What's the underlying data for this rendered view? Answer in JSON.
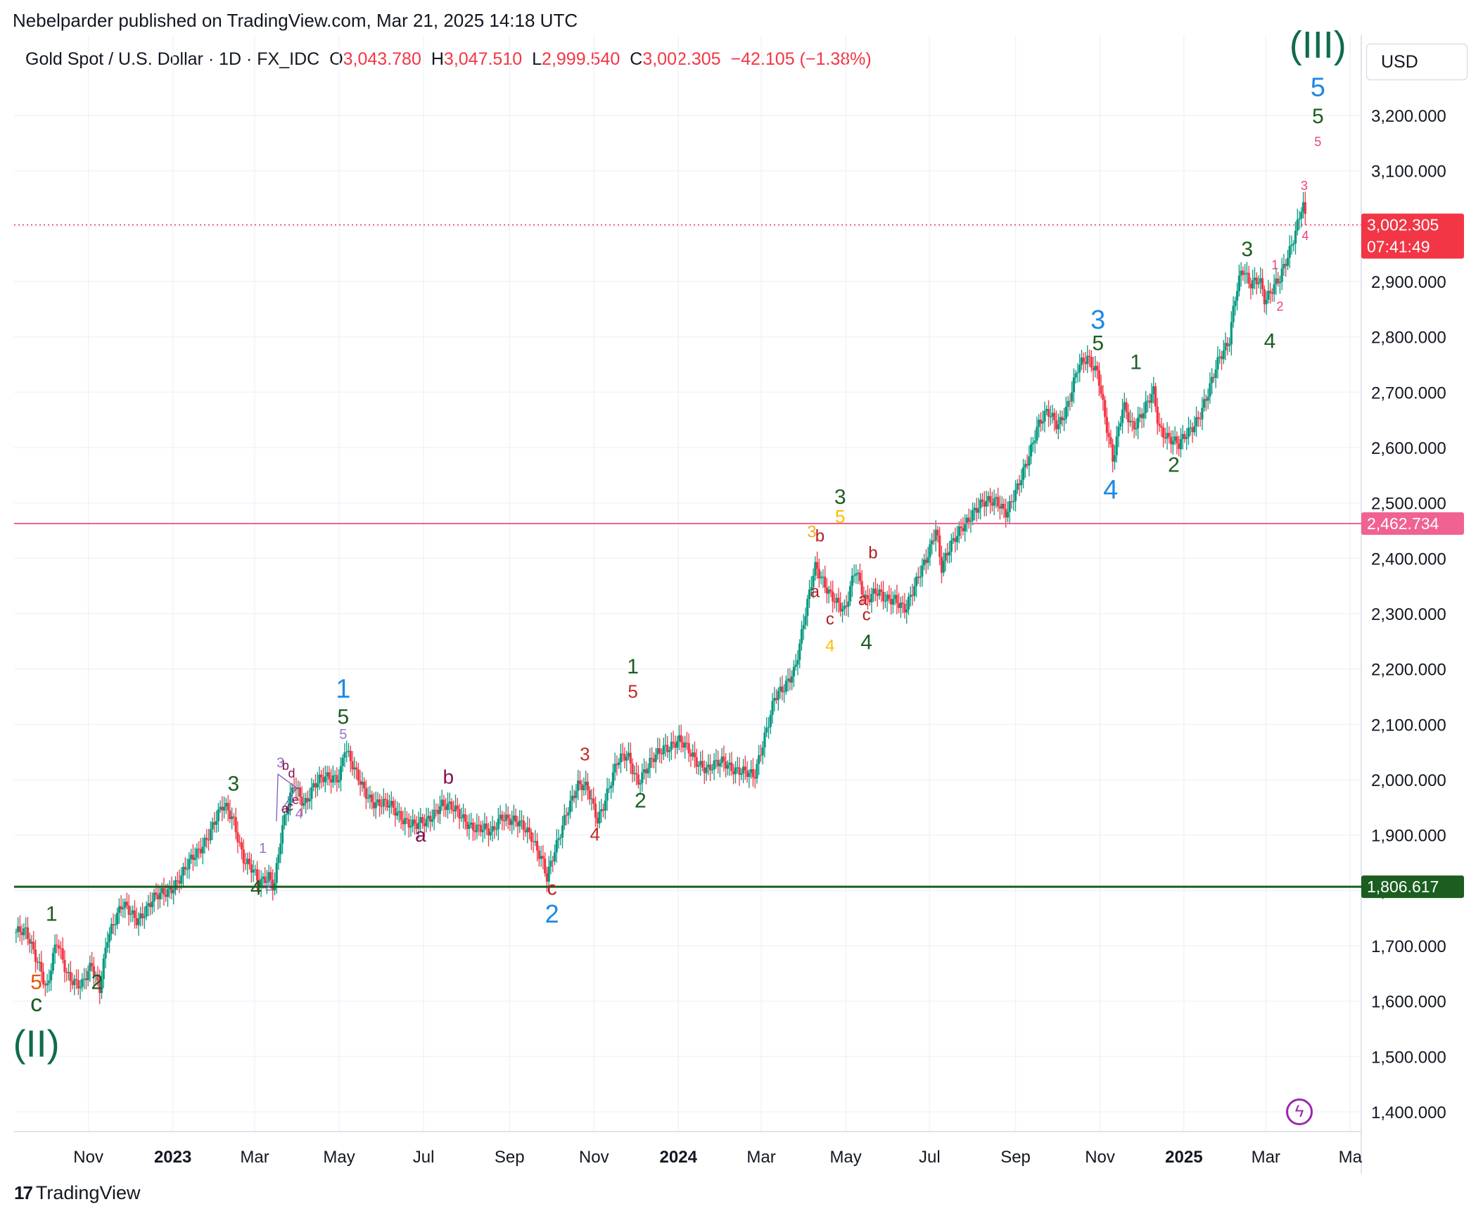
{
  "publisher_line": "Nebelparder published on TradingView.com, Mar 21, 2025 14:18 UTC",
  "legend": {
    "symbol": "Gold Spot / U.S. Dollar · 1D · FX_IDC",
    "o_label": "O",
    "o_value": "3,043.780",
    "h_label": "H",
    "h_value": "3,047.510",
    "l_label": "L",
    "l_value": "2,999.540",
    "c_label": "C",
    "c_value": "3,002.305",
    "change": "−42.105 (−1.38%)"
  },
  "currency": "USD",
  "footer_brand": "TradingView",
  "colors": {
    "up": "#089981",
    "down": "#f23645",
    "green_line": "#1b5e20",
    "pink_line": "#f06292",
    "price_badge": "#f23645",
    "pink_badge": "#ec407a",
    "green_badge": "#1b5e20"
  },
  "chart_data": {
    "type": "candlestick",
    "title": "Gold Spot / U.S. Dollar · 1D · FX_IDC",
    "ylim": [
      1360,
      3380
    ],
    "y_ticks": [
      "3,200.000",
      "3,100.000",
      "3,000.000",
      "2,900.000",
      "2,800.000",
      "2,700.000",
      "2,600.000",
      "2,500.000",
      "2,400.000",
      "2,300.000",
      "2,200.000",
      "2,100.000",
      "2,000.000",
      "1,900.000",
      "1,800.000",
      "1,700.000",
      "1,600.000",
      "1,500.000",
      "1,400.000"
    ],
    "y_tick_values": [
      3200,
      3100,
      3000,
      2900,
      2800,
      2700,
      2600,
      2500,
      2400,
      2300,
      2200,
      2100,
      2000,
      1900,
      1800,
      1700,
      1600,
      1500,
      1400
    ],
    "x_ticks": [
      {
        "label": "Nov",
        "t": 2022.833,
        "bold": false
      },
      {
        "label": "2023",
        "t": 2023.0,
        "bold": true
      },
      {
        "label": "Mar",
        "t": 2023.162,
        "bold": false
      },
      {
        "label": "May",
        "t": 2023.329,
        "bold": false
      },
      {
        "label": "Jul",
        "t": 2023.496,
        "bold": false
      },
      {
        "label": "Sep",
        "t": 2023.666,
        "bold": false
      },
      {
        "label": "Nov",
        "t": 2023.833,
        "bold": false
      },
      {
        "label": "2024",
        "t": 2024.0,
        "bold": true
      },
      {
        "label": "Mar",
        "t": 2024.164,
        "bold": false
      },
      {
        "label": "May",
        "t": 2024.331,
        "bold": false
      },
      {
        "label": "Jul",
        "t": 2024.497,
        "bold": false
      },
      {
        "label": "Sep",
        "t": 2024.667,
        "bold": false
      },
      {
        "label": "Nov",
        "t": 2024.834,
        "bold": false
      },
      {
        "label": "2025",
        "t": 2025.0,
        "bold": true
      },
      {
        "label": "Mar",
        "t": 2025.162,
        "bold": false
      },
      {
        "label": "Ma",
        "t": 2025.329,
        "bold": false
      }
    ],
    "price_path": [
      [
        2022.69,
        1725
      ],
      [
        2022.71,
        1720
      ],
      [
        2022.74,
        1660
      ],
      [
        2022.75,
        1620
      ],
      [
        2022.77,
        1705
      ],
      [
        2022.79,
        1650
      ],
      [
        2022.82,
        1630
      ],
      [
        2022.84,
        1660
      ],
      [
        2022.855,
        1620
      ],
      [
        2022.87,
        1720
      ],
      [
        2022.9,
        1770
      ],
      [
        2022.93,
        1750
      ],
      [
        2022.96,
        1780
      ],
      [
        2022.99,
        1800
      ],
      [
        2023.02,
        1830
      ],
      [
        2023.05,
        1870
      ],
      [
        2023.08,
        1920
      ],
      [
        2023.1,
        1950
      ],
      [
        2023.12,
        1930
      ],
      [
        2023.14,
        1860
      ],
      [
        2023.16,
        1830
      ],
      [
        2023.17,
        1808
      ],
      [
        2023.19,
        1830
      ],
      [
        2023.2,
        1810
      ],
      [
        2023.215,
        1905
      ],
      [
        2023.24,
        1990
      ],
      [
        2023.26,
        1960
      ],
      [
        2023.28,
        1990
      ],
      [
        2023.3,
        2000
      ],
      [
        2023.33,
        2010
      ],
      [
        2023.34,
        2060
      ],
      [
        2023.36,
        2010
      ],
      [
        2023.38,
        1980
      ],
      [
        2023.4,
        1960
      ],
      [
        2023.43,
        1950
      ],
      [
        2023.46,
        1930
      ],
      [
        2023.48,
        1915
      ],
      [
        2023.5,
        1920
      ],
      [
        2023.53,
        1960
      ],
      [
        2023.56,
        1940
      ],
      [
        2023.59,
        1920
      ],
      [
        2023.63,
        1900
      ],
      [
        2023.65,
        1940
      ],
      [
        2023.68,
        1920
      ],
      [
        2023.71,
        1900
      ],
      [
        2023.73,
        1860
      ],
      [
        2023.74,
        1820
      ],
      [
        2023.76,
        1880
      ],
      [
        2023.78,
        1950
      ],
      [
        2023.8,
        1990
      ],
      [
        2023.82,
        1980
      ],
      [
        2023.84,
        1930
      ],
      [
        2023.86,
        1980
      ],
      [
        2023.88,
        2030
      ],
      [
        2023.9,
        2045
      ],
      [
        2023.92,
        2000
      ],
      [
        2023.94,
        2020
      ],
      [
        2023.97,
        2060
      ],
      [
        2024.0,
        2070
      ],
      [
        2024.03,
        2040
      ],
      [
        2024.06,
        2020
      ],
      [
        2024.09,
        2030
      ],
      [
        2024.12,
        2020
      ],
      [
        2024.15,
        2000
      ],
      [
        2024.17,
        2080
      ],
      [
        2024.19,
        2150
      ],
      [
        2024.21,
        2160
      ],
      [
        2024.23,
        2200
      ],
      [
        2024.25,
        2300
      ],
      [
        2024.27,
        2380
      ],
      [
        2024.29,
        2350
      ],
      [
        2024.31,
        2330
      ],
      [
        2024.33,
        2300
      ],
      [
        2024.35,
        2380
      ],
      [
        2024.37,
        2330
      ],
      [
        2024.39,
        2340
      ],
      [
        2024.41,
        2320
      ],
      [
        2024.43,
        2330
      ],
      [
        2024.45,
        2310
      ],
      [
        2024.47,
        2350
      ],
      [
        2024.49,
        2400
      ],
      [
        2024.51,
        2460
      ],
      [
        2024.52,
        2380
      ],
      [
        2024.54,
        2420
      ],
      [
        2024.56,
        2460
      ],
      [
        2024.58,
        2480
      ],
      [
        2024.61,
        2500
      ],
      [
        2024.63,
        2510
      ],
      [
        2024.65,
        2480
      ],
      [
        2024.67,
        2520
      ],
      [
        2024.69,
        2580
      ],
      [
        2024.71,
        2640
      ],
      [
        2024.73,
        2660
      ],
      [
        2024.75,
        2640
      ],
      [
        2024.77,
        2680
      ],
      [
        2024.79,
        2740
      ],
      [
        2024.81,
        2760
      ],
      [
        2024.83,
        2740
      ],
      [
        2024.85,
        2620
      ],
      [
        2024.86,
        2570
      ],
      [
        2024.88,
        2680
      ],
      [
        2024.9,
        2640
      ],
      [
        2024.92,
        2660
      ],
      [
        2024.94,
        2700
      ],
      [
        2024.95,
        2640
      ],
      [
        2024.97,
        2620
      ],
      [
        2024.99,
        2600
      ],
      [
        2025.01,
        2630
      ],
      [
        2025.03,
        2660
      ],
      [
        2025.05,
        2700
      ],
      [
        2025.07,
        2760
      ],
      [
        2025.09,
        2800
      ],
      [
        2025.1,
        2870
      ],
      [
        2025.115,
        2920
      ],
      [
        2025.13,
        2890
      ],
      [
        2025.15,
        2910
      ],
      [
        2025.16,
        2870
      ],
      [
        2025.17,
        2880
      ],
      [
        2025.19,
        2900
      ],
      [
        2025.21,
        2960
      ],
      [
        2025.225,
        3010
      ],
      [
        2025.235,
        3045
      ],
      [
        2025.242,
        3002
      ]
    ],
    "last_price": 3002.305,
    "hlines": [
      {
        "value": 2462.734,
        "label": "2,462.734",
        "color": "#f06292",
        "width": 2
      },
      {
        "value": 1806.617,
        "label": "1,806.617",
        "color": "#1b5e20",
        "width": 3
      }
    ],
    "current_price_label": "3,002.305",
    "countdown_label": "07:41:49",
    "annotations": [
      {
        "text": "(II)",
        "t": 2022.73,
        "p": 1500,
        "color": "#0f6b4e",
        "size": 54
      },
      {
        "text": "c",
        "t": 2022.73,
        "p": 1582,
        "color": "#1b5e20",
        "size": 34
      },
      {
        "text": "5",
        "t": 2022.73,
        "p": 1622,
        "color": "#e65100",
        "size": 30
      },
      {
        "text": "1",
        "t": 2022.76,
        "p": 1745,
        "color": "#1b5e20",
        "size": 30
      },
      {
        "text": "2",
        "t": 2022.85,
        "p": 1622,
        "color": "#1b5e20",
        "size": 30
      },
      {
        "text": "3",
        "t": 2023.12,
        "p": 1980,
        "color": "#1b5e20",
        "size": 30
      },
      {
        "text": "4",
        "t": 2023.165,
        "p": 1792,
        "color": "#1b5e20",
        "size": 30
      },
      {
        "text": "1",
        "t": 2023.178,
        "p": 1868,
        "color": "#9575cd",
        "size": 20
      },
      {
        "text": "2",
        "t": 2023.19,
        "p": 1800,
        "color": "#9575cd",
        "size": 20
      },
      {
        "text": "3",
        "t": 2023.213,
        "p": 2022,
        "color": "#9575cd",
        "size": 20
      },
      {
        "text": "b",
        "t": 2023.223,
        "p": 2018,
        "color": "#880e4f",
        "size": 18
      },
      {
        "text": "d",
        "t": 2023.235,
        "p": 2004,
        "color": "#880e4f",
        "size": 18
      },
      {
        "text": "a",
        "t": 2023.222,
        "p": 1940,
        "color": "#880e4f",
        "size": 18
      },
      {
        "text": "c",
        "t": 2023.232,
        "p": 1944,
        "color": "#880e4f",
        "size": 18
      },
      {
        "text": "e",
        "t": 2023.243,
        "p": 1956,
        "color": "#880e4f",
        "size": 18
      },
      {
        "text": "4",
        "t": 2023.25,
        "p": 1930,
        "color": "#9575cd",
        "size": 20
      },
      {
        "text": "1",
        "t": 2023.337,
        "p": 2148,
        "color": "#1e88e5",
        "size": 38
      },
      {
        "text": "5",
        "t": 2023.337,
        "p": 2101,
        "color": "#1b5e20",
        "size": 30
      },
      {
        "text": "5",
        "t": 2023.337,
        "p": 2074,
        "color": "#9575cd",
        "size": 20
      },
      {
        "text": "a",
        "t": 2023.49,
        "p": 1888,
        "color": "#880e4f",
        "size": 28
      },
      {
        "text": "b",
        "t": 2023.545,
        "p": 1993,
        "color": "#880e4f",
        "size": 28
      },
      {
        "text": "c",
        "t": 2023.75,
        "p": 1792,
        "color": "#b71c1c",
        "size": 28
      },
      {
        "text": "2",
        "t": 2023.75,
        "p": 1742,
        "color": "#1e88e5",
        "size": 36
      },
      {
        "text": "3",
        "t": 2023.815,
        "p": 2035,
        "color": "#c62828",
        "size": 26
      },
      {
        "text": "4",
        "t": 2023.835,
        "p": 1890,
        "color": "#c62828",
        "size": 26
      },
      {
        "text": "1",
        "t": 2023.91,
        "p": 2192,
        "color": "#1b5e20",
        "size": 30
      },
      {
        "text": "5",
        "t": 2023.91,
        "p": 2148,
        "color": "#c62828",
        "size": 26
      },
      {
        "text": "2",
        "t": 2023.925,
        "p": 1950,
        "color": "#1b5e20",
        "size": 30
      },
      {
        "text": "3",
        "t": 2024.264,
        "p": 2438,
        "color": "#f9a825",
        "size": 24
      },
      {
        "text": "b",
        "t": 2024.28,
        "p": 2430,
        "color": "#b71c1c",
        "size": 24
      },
      {
        "text": "a",
        "t": 2024.27,
        "p": 2330,
        "color": "#b71c1c",
        "size": 24
      },
      {
        "text": "c",
        "t": 2024.3,
        "p": 2280,
        "color": "#b71c1c",
        "size": 24
      },
      {
        "text": "4",
        "t": 2024.3,
        "p": 2232,
        "color": "#f9c100",
        "size": 24
      },
      {
        "text": "3",
        "t": 2024.32,
        "p": 2498,
        "color": "#1b5e20",
        "size": 30
      },
      {
        "text": "5",
        "t": 2024.32,
        "p": 2464,
        "color": "#f9c100",
        "size": 26
      },
      {
        "text": "b",
        "t": 2024.385,
        "p": 2400,
        "color": "#b71c1c",
        "size": 24
      },
      {
        "text": "a",
        "t": 2024.365,
        "p": 2315,
        "color": "#b71c1c",
        "size": 24
      },
      {
        "text": "c",
        "t": 2024.372,
        "p": 2288,
        "color": "#b71c1c",
        "size": 24
      },
      {
        "text": "4",
        "t": 2024.372,
        "p": 2236,
        "color": "#1b5e20",
        "size": 30
      },
      {
        "text": "3",
        "t": 2024.83,
        "p": 2815,
        "color": "#1e88e5",
        "size": 38
      },
      {
        "text": "5",
        "t": 2024.83,
        "p": 2776,
        "color": "#1b5e20",
        "size": 30
      },
      {
        "text": "1",
        "t": 2024.905,
        "p": 2742,
        "color": "#1b5e20",
        "size": 30
      },
      {
        "text": "4",
        "t": 2024.855,
        "p": 2508,
        "color": "#1e88e5",
        "size": 38
      },
      {
        "text": "2",
        "t": 2024.98,
        "p": 2556,
        "color": "#1b5e20",
        "size": 30
      },
      {
        "text": "3",
        "t": 2025.125,
        "p": 2946,
        "color": "#1b5e20",
        "size": 30
      },
      {
        "text": "1",
        "t": 2025.18,
        "p": 2922,
        "color": "#ec407a",
        "size": 18
      },
      {
        "text": "2",
        "t": 2025.19,
        "p": 2847,
        "color": "#ec407a",
        "size": 18
      },
      {
        "text": "4",
        "t": 2025.17,
        "p": 2780,
        "color": "#1b5e20",
        "size": 30
      },
      {
        "text": "3",
        "t": 2025.238,
        "p": 3065,
        "color": "#ec407a",
        "size": 18
      },
      {
        "text": "4",
        "t": 2025.24,
        "p": 2975,
        "color": "#ec407a",
        "size": 18
      },
      {
        "text": "(III)",
        "t": 2025.265,
        "p": 3304,
        "color": "#0f6b4e",
        "size": 54
      },
      {
        "text": "5",
        "t": 2025.265,
        "p": 3235,
        "color": "#1e88e5",
        "size": 38
      },
      {
        "text": "5",
        "t": 2025.265,
        "p": 3186,
        "color": "#1b5e20",
        "size": 30
      },
      {
        "text": "5",
        "t": 2025.265,
        "p": 3145,
        "color": "#ec407a",
        "size": 18
      }
    ],
    "grid": true
  }
}
